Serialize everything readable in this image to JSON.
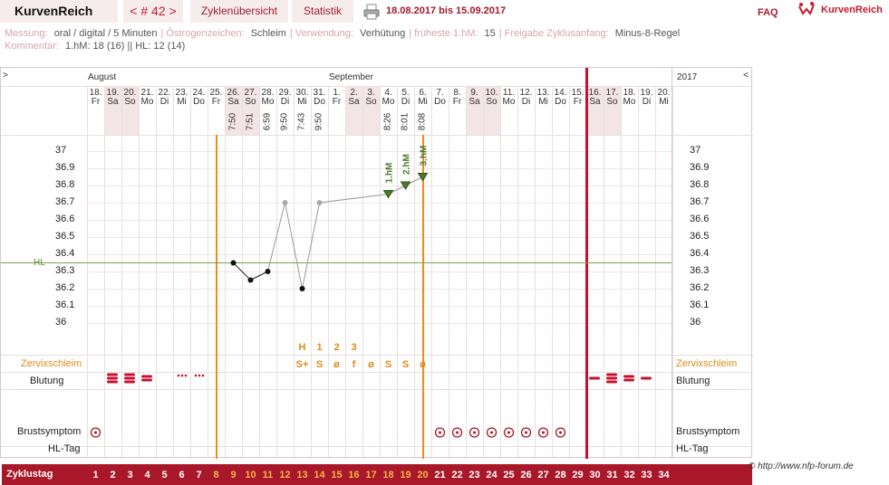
{
  "topbar": {
    "brand": "KurvenReich",
    "cycle_nav": "< # 42 >",
    "tab_uebersicht": "Zyklenübersicht",
    "tab_statistik": "Statistik",
    "date_range": "18.08.2017 bis 15.09.2017",
    "faq": "FAQ",
    "logo_text": "KurvenReich"
  },
  "info": {
    "messung_label": "Messung:",
    "messung_value": "oral / digital / 5 Minuten",
    "oestrogen_label": "Östrogenzeichen:",
    "oestrogen_value": "Schleim",
    "verwendung_label": "Verwendung:",
    "verwendung_value": "Verhütung",
    "fruehestes_label": "früheste 1.hM:",
    "fruehestes_value": "15",
    "freigabe_label": "Freigabe Zyklusanfang:",
    "freigabe_value": "Minus-8-Regel",
    "kommentar_label": "Kommentar:",
    "kommentar_value": "1.hM: 18 (16) || HL: 12 (14)"
  },
  "header": {
    "left_arrow": ">",
    "right_arrow": "<",
    "month_aug": "August",
    "month_sep": "September",
    "year": "2017"
  },
  "days": [
    {
      "d": "18.",
      "w": "Fr",
      "t": "",
      "we": false
    },
    {
      "d": "19.",
      "w": "Sa",
      "t": "",
      "we": true
    },
    {
      "d": "20.",
      "w": "So",
      "t": "",
      "we": true
    },
    {
      "d": "21.",
      "w": "Mo",
      "t": "",
      "we": false
    },
    {
      "d": "22.",
      "w": "Di",
      "t": "",
      "we": false
    },
    {
      "d": "23.",
      "w": "Mi",
      "t": "",
      "we": false
    },
    {
      "d": "24.",
      "w": "Do",
      "t": "",
      "we": false
    },
    {
      "d": "25.",
      "w": "Fr",
      "t": "",
      "we": false
    },
    {
      "d": "26.",
      "w": "Sa",
      "t": "7:50",
      "we": true
    },
    {
      "d": "27.",
      "w": "So",
      "t": "7:51",
      "we": true
    },
    {
      "d": "28.",
      "w": "Mo",
      "t": "6:59",
      "we": false
    },
    {
      "d": "29.",
      "w": "Di",
      "t": "9:50",
      "we": false
    },
    {
      "d": "30.",
      "w": "Mi",
      "t": "7:43",
      "we": false
    },
    {
      "d": "31.",
      "w": "Do",
      "t": "9:50",
      "we": false
    },
    {
      "d": "1.",
      "w": "Fr",
      "t": "",
      "we": false
    },
    {
      "d": "2.",
      "w": "Sa",
      "t": "",
      "we": true
    },
    {
      "d": "3.",
      "w": "So",
      "t": "",
      "we": true
    },
    {
      "d": "4.",
      "w": "Mo",
      "t": "8:26",
      "we": false
    },
    {
      "d": "5.",
      "w": "Di",
      "t": "8:01",
      "we": false
    },
    {
      "d": "6.",
      "w": "Mi",
      "t": "8:08",
      "we": false
    },
    {
      "d": "7.",
      "w": "Do",
      "t": "",
      "we": false
    },
    {
      "d": "8.",
      "w": "Fr",
      "t": "",
      "we": false
    },
    {
      "d": "9.",
      "w": "Sa",
      "t": "",
      "we": true
    },
    {
      "d": "10.",
      "w": "So",
      "t": "",
      "we": true
    },
    {
      "d": "11.",
      "w": "Mo",
      "t": "",
      "we": false
    },
    {
      "d": "12.",
      "w": "Di",
      "t": "",
      "we": false
    },
    {
      "d": "13.",
      "w": "Mi",
      "t": "",
      "we": false
    },
    {
      "d": "14.",
      "w": "Do",
      "t": "",
      "we": false
    },
    {
      "d": "15.",
      "w": "Fr",
      "t": "",
      "we": false
    },
    {
      "d": "16.",
      "w": "Sa",
      "t": "",
      "we": true
    },
    {
      "d": "17.",
      "w": "So",
      "t": "",
      "we": true
    },
    {
      "d": "18.",
      "w": "Mo",
      "t": "",
      "we": false
    },
    {
      "d": "19.",
      "w": "Di",
      "t": "",
      "we": false
    },
    {
      "d": "20.",
      "w": "Mi",
      "t": "",
      "we": false
    }
  ],
  "y_ticks": [
    "37",
    "36.9",
    "36.8",
    "36.7",
    "36.6",
    "36.5",
    "36.4",
    "36.3",
    "36.2",
    "36.1",
    "36"
  ],
  "hl_label": "HL",
  "rows": {
    "zervix": "Zervixschleim",
    "blutung": "Blutung",
    "zyklustag": "Zyklustag",
    "brustsymptom": "Brustsymptom",
    "hltag": "HL-Tag"
  },
  "peak_marks": [
    {
      "day": 12,
      "text": "H"
    },
    {
      "day": 13,
      "text": "1"
    },
    {
      "day": 14,
      "text": "2"
    },
    {
      "day": 15,
      "text": "3"
    }
  ],
  "zervix_values": [
    {
      "day": 12,
      "text": "S+"
    },
    {
      "day": 13,
      "text": "S"
    },
    {
      "day": 14,
      "text": "ø"
    },
    {
      "day": 15,
      "text": "f"
    },
    {
      "day": 16,
      "text": "ø"
    },
    {
      "day": 17,
      "text": "S"
    },
    {
      "day": 18,
      "text": "S"
    },
    {
      "day": 19,
      "text": "ø"
    }
  ],
  "hm_labels": [
    {
      "day": 17,
      "text": "1.hM"
    },
    {
      "day": 18,
      "text": "2.hM"
    },
    {
      "day": 19,
      "text": "3.hM"
    }
  ],
  "zyklustage": [
    "1",
    "2",
    "3",
    "4",
    "5",
    "6",
    "7",
    "8",
    "9",
    "10",
    "11",
    "12",
    "13",
    "14",
    "15",
    "16",
    "17",
    "18",
    "19",
    "20",
    "21",
    "22",
    "23",
    "24",
    "25",
    "26",
    "27",
    "28",
    "29",
    "30",
    "31",
    "32",
    "33",
    "34"
  ],
  "chart_data": {
    "type": "line",
    "ylabel": "",
    "ylim": [
      36.0,
      37.0
    ],
    "coverline": 36.35,
    "series": [
      {
        "values": [
          {
            "day": "26.08.",
            "y": 36.35
          },
          {
            "day": "27.08.",
            "y": 36.25
          },
          {
            "day": "28.08.",
            "y": 36.3
          },
          {
            "day": "29.08.",
            "y": 36.7,
            "excluded": true
          },
          {
            "day": "30.08.",
            "y": 36.2
          },
          {
            "day": "31.08.",
            "y": 36.7,
            "excluded": true
          },
          {
            "day": "04.09.",
            "y": 36.75
          },
          {
            "day": "05.09.",
            "y": 36.8
          },
          {
            "day": "06.09.",
            "y": 36.85
          }
        ]
      }
    ]
  },
  "copyright": "© http://www.nfp-forum.de"
}
